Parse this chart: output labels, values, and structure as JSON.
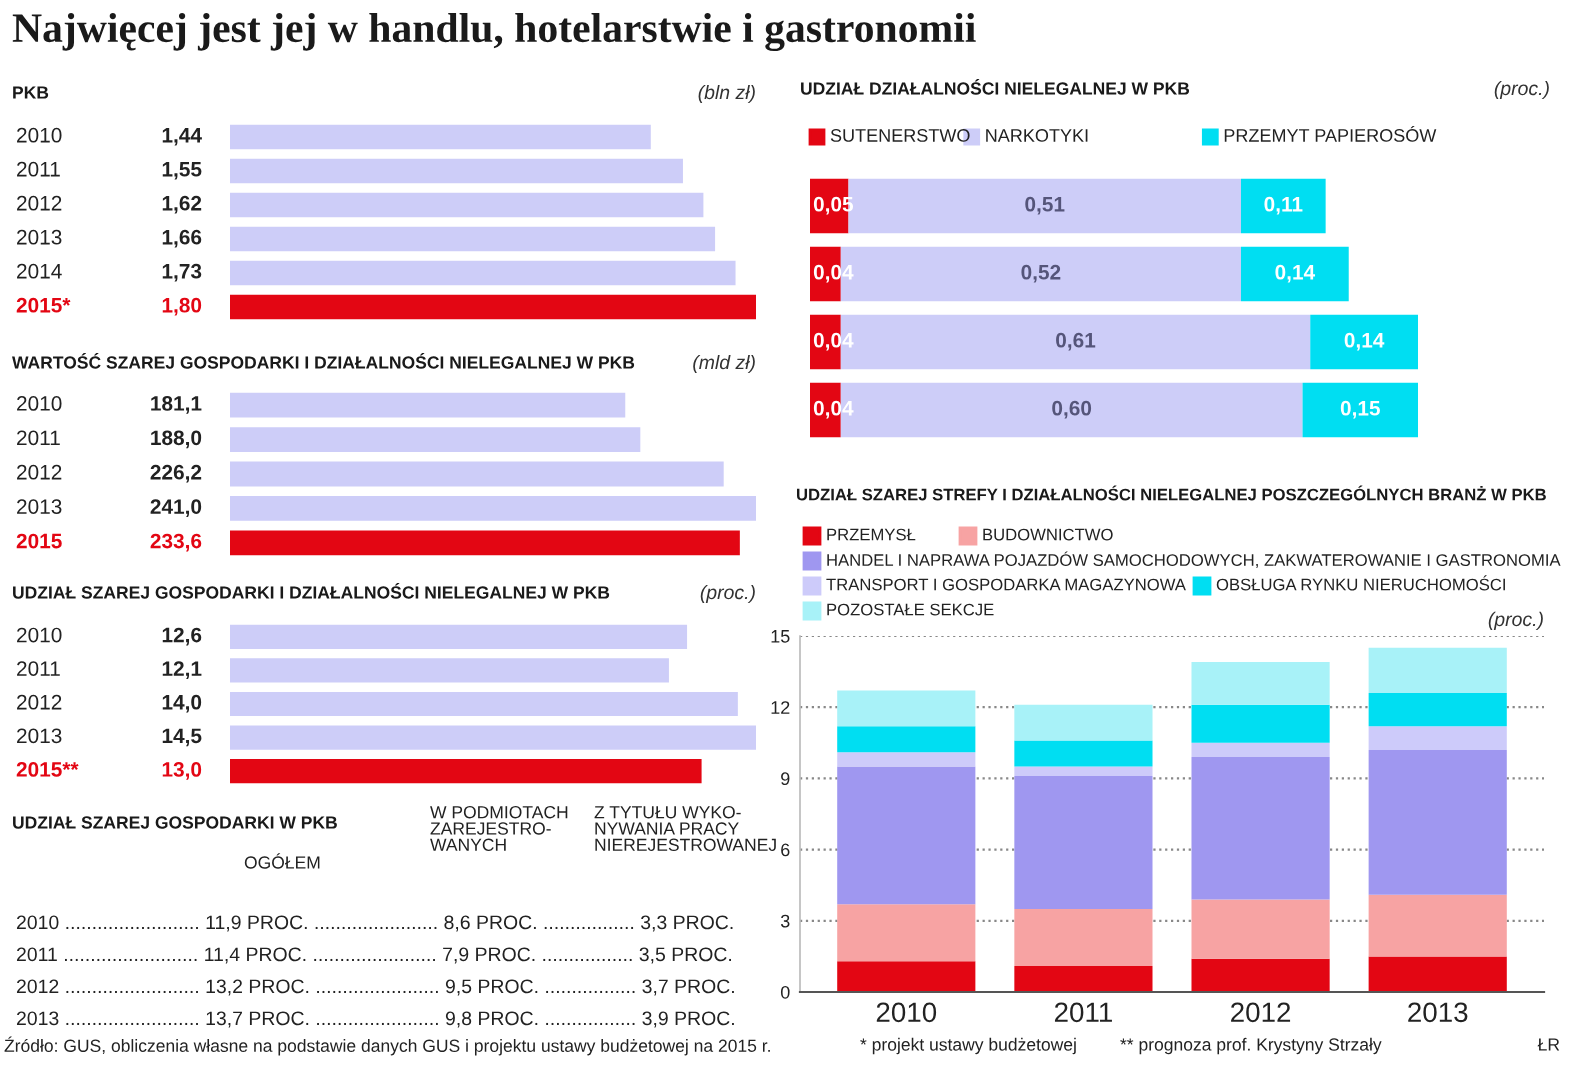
{
  "chart_data": [
    {
      "type": "other",
      "title": "Najwięcej jest jej w handlu, hotelarstwie i gastronomii",
      "annotations": [
        "Źródło: GUS, obliczenia własne na podstawie danych GUS i projektu ustawy budżetowej na 2015 r.",
        "* projekt ustawy budżetowej",
        "** prognoza prof. Krystyny Strzały",
        "ŁR"
      ]
    },
    {
      "type": "bar",
      "orientation": "horizontal",
      "title": "PKB",
      "xlabel": "(bln zł)",
      "categories": [
        "2010",
        "2011",
        "2012",
        "2013",
        "2014",
        "2015*"
      ],
      "values": [
        1.44,
        1.55,
        1.62,
        1.66,
        1.73,
        1.8
      ],
      "value_labels": [
        "1,44",
        "1,55",
        "1,62",
        "1,66",
        "1,73",
        "1,80"
      ],
      "colors": [
        "#cdcdf8",
        "#cdcdf8",
        "#cdcdf8",
        "#cdcdf8",
        "#cdcdf8",
        "#e30613"
      ]
    },
    {
      "type": "bar",
      "orientation": "horizontal",
      "title": "WARTOŚĆ SZAREJ GOSPODARKI I DZIAŁALNOŚCI NIELEGALNEJ W PKB",
      "xlabel": "(mld zł)",
      "categories": [
        "2010",
        "2011",
        "2012",
        "2013",
        "2015"
      ],
      "values": [
        181.1,
        188.0,
        226.2,
        241.0,
        233.6
      ],
      "value_labels": [
        "181,1",
        "188,0",
        "226,2",
        "241,0",
        "233,6"
      ],
      "colors": [
        "#cdcdf8",
        "#cdcdf8",
        "#cdcdf8",
        "#cdcdf8",
        "#e30613"
      ]
    },
    {
      "type": "bar",
      "orientation": "horizontal",
      "title": "UDZIAŁ SZAREJ GOSPODARKI I DZIAŁALNOŚCI NIELEGALNEJ W PKB",
      "xlabel": "(proc.)",
      "categories": [
        "2010",
        "2011",
        "2012",
        "2013",
        "2015**"
      ],
      "values": [
        12.6,
        12.1,
        14.0,
        14.5,
        13.0
      ],
      "value_labels": [
        "12,6",
        "12,1",
        "14,0",
        "14,5",
        "13,0"
      ],
      "colors": [
        "#cdcdf8",
        "#cdcdf8",
        "#cdcdf8",
        "#cdcdf8",
        "#e30613"
      ]
    },
    {
      "type": "other",
      "title": "UDZIAŁ SZAREJ GOSPODARKI W PKB",
      "annotations": [
        "OGÓŁEM",
        "W PODMIOTACH\nZAREJESTRO-\nWANYCH",
        "Z TYTUŁU WYKO-\nNYWANIA PRACY\nNIEREJESTROWANEJ",
        "2010 ......................... 11,9 PROC. ....................... 8,6 PROC. ................. 3,3 PROC.",
        "2011 ......................... 11,4 PROC. ....................... 7,9 PROC. ................. 3,5 PROC.",
        "2012 ......................... 13,2 PROC. ....................... 9,5 PROC. ................. 3,7 PROC.",
        "2013 ......................... 13,7 PROC. ....................... 9,8 PROC. ................. 3,9 PROC."
      ]
    },
    {
      "type": "bar",
      "orientation": "horizontal",
      "stacked": true,
      "title": "UDZIAŁ DZIAŁALNOŚCI NIELEGALNEJ W PKB",
      "xlabel": "(proc.)",
      "legend": "top",
      "categories": [
        null,
        null,
        null,
        null
      ],
      "series": [
        {
          "name": "SUTENERSTWO",
          "color": "#e30613",
          "values": [
            0.05,
            0.04,
            0.04,
            0.04
          ],
          "value_labels": [
            "0,05",
            "0,04",
            "0,04",
            "0,04"
          ]
        },
        {
          "name": "NARKOTYKI",
          "color": "#cdcdf8",
          "values": [
            0.51,
            0.52,
            0.61,
            0.6
          ],
          "value_labels": [
            "0,51",
            "0,52",
            "0,61",
            "0,60"
          ]
        },
        {
          "name": "PRZEMYT PAPIEROSÓW",
          "color": "#00def2",
          "values": [
            0.11,
            0.14,
            0.14,
            0.15
          ],
          "value_labels": [
            "0,11",
            "0,14",
            "0,14",
            "0,15"
          ]
        }
      ]
    },
    {
      "type": "bar",
      "stacked": true,
      "title": "UDZIAŁ SZAREJ STREFY I DZIAŁALNOŚCI NIELEGALNEJ POSZCZEGÓLNYCH BRANŻ W PKB",
      "ylabel": "(proc.)",
      "legend": "top",
      "grid": "y",
      "categories": [
        "2010",
        "2011",
        "2012",
        "2013"
      ],
      "ylim": [
        0,
        15
      ],
      "yticks": [
        0,
        3,
        6,
        9,
        12,
        15
      ],
      "series": [
        {
          "name": "PRZEMYSŁ",
          "color": "#e30613",
          "values": [
            1.3,
            1.1,
            1.4,
            1.5
          ]
        },
        {
          "name": "BUDOWNICTWO",
          "color": "#f7a3a3",
          "values": [
            2.4,
            2.4,
            2.5,
            2.6
          ]
        },
        {
          "name": "HANDEL I NAPRAWA POJAZDÓW SAMOCHODOWYCH, ZAKWATEROWANIE I GASTRONOMIA",
          "color": "#9f97f0",
          "values": [
            5.8,
            5.6,
            6.0,
            6.1
          ]
        },
        {
          "name": "TRANSPORT I GOSPODARKA MAGAZYNOWA",
          "color": "#cdcbfa",
          "values": [
            0.6,
            0.4,
            0.6,
            1.0
          ]
        },
        {
          "name": "OBSŁUGA RYNKU NIERUCHOMOŚCI",
          "color": "#00def2",
          "values": [
            1.1,
            1.1,
            1.6,
            1.4
          ]
        },
        {
          "name": "POZOSTAŁE SEKCJE",
          "color": "#a8f2f8",
          "values": [
            1.5,
            1.5,
            1.8,
            1.9
          ]
        }
      ]
    }
  ]
}
